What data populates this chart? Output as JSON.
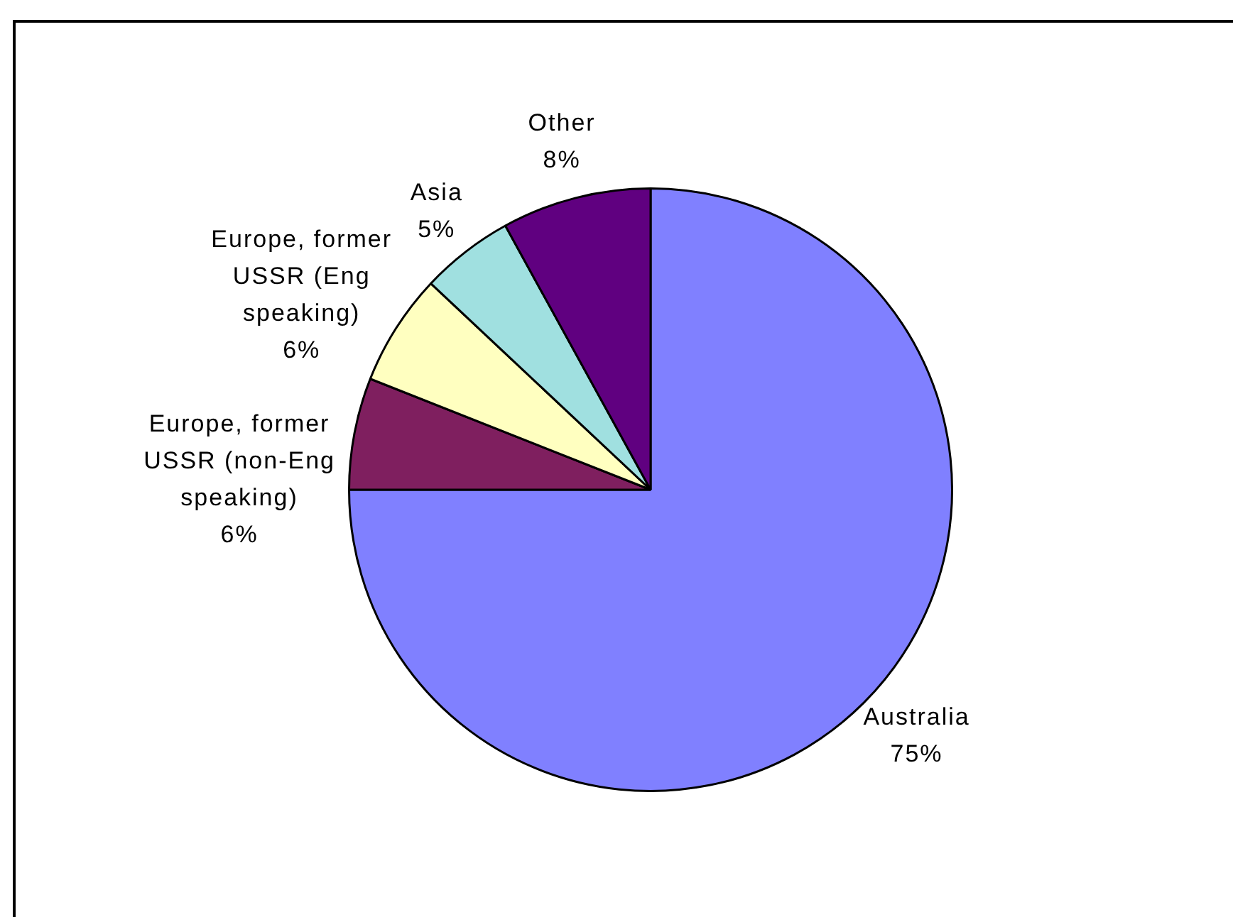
{
  "chart_data": {
    "type": "pie",
    "categories": [
      "Australia",
      "Europe, former USSR (non-Eng speaking)",
      "Europe, former USSR (Eng speaking)",
      "Asia",
      "Other"
    ],
    "values": [
      75,
      6,
      6,
      5,
      8
    ],
    "colors": [
      "#8080ff",
      "#7f1f5f",
      "#ffffc0",
      "#a0e0e0",
      "#600080"
    ],
    "value_labels": [
      "75%",
      "6%",
      "6%",
      "5%",
      "8%"
    ]
  }
}
